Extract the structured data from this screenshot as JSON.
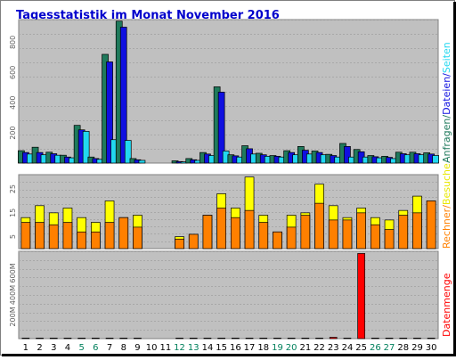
{
  "chart_data": {
    "type": "bar",
    "title": "Tagesstatistik im Monat November 2016",
    "days": [
      "1",
      "2",
      "3",
      "4",
      "5",
      "6",
      "7",
      "8",
      "9",
      "10",
      "11",
      "12",
      "13",
      "14",
      "15",
      "16",
      "17",
      "18",
      "19",
      "20",
      "21",
      "22",
      "23",
      "24",
      "25",
      "26",
      "27",
      "28",
      "29",
      "30"
    ],
    "weekend_days": [
      "5",
      "6",
      "12",
      "13",
      "19",
      "20",
      "26",
      "27"
    ],
    "panels": [
      {
        "name": "requests-files-pages",
        "ylim": [
          0,
          950
        ],
        "ticks": [
          "200",
          "400",
          "600",
          "800"
        ],
        "tick_values": [
          200,
          400,
          600,
          800
        ],
        "series": [
          {
            "name": "Anfragen",
            "color": "#1f7a5c",
            "values": [
              82,
              105,
              72,
              52,
              250,
              40,
              720,
              940,
              30,
              0,
              0,
              15,
              30,
              70,
              505,
              55,
              115,
              65,
              50,
              82,
              110,
              80,
              58,
              130,
              90,
              50,
              45,
              72,
              72,
              68
            ]
          },
          {
            "name": "Dateien",
            "color": "#1010e0",
            "values": [
              70,
              70,
              62,
              40,
              220,
              30,
              670,
              900,
              22,
              0,
              0,
              10,
              22,
              60,
              470,
              48,
              95,
              55,
              45,
              70,
              85,
              70,
              50,
              110,
              75,
              42,
              38,
              62,
              62,
              60
            ]
          },
          {
            "name": "Seiten",
            "color": "#22d8f0",
            "values": [
              60,
              55,
              52,
              35,
              210,
              25,
              155,
              150,
              18,
              0,
              0,
              8,
              18,
              50,
              80,
              40,
              60,
              45,
              40,
              55,
              60,
              55,
              40,
              40,
              40,
              35,
              30,
              55,
              55,
              50
            ]
          }
        ]
      },
      {
        "name": "hosts-visits",
        "ylim": [
          0,
          31
        ],
        "ticks": [
          "5",
          "15",
          "25"
        ],
        "tick_values": [
          5,
          15,
          25
        ],
        "series": [
          {
            "name": "Besuche",
            "color": "#ffff00",
            "values": [
              13,
              18,
              15,
              17,
              13,
              11,
              20,
              13,
              14,
              0,
              0,
              5,
              6,
              14,
              23,
              17,
              30,
              14,
              7,
              14,
              15,
              27,
              18,
              13,
              17,
              13,
              12,
              16,
              22,
              20
            ]
          },
          {
            "name": "Rechner",
            "color": "#ff8000",
            "values": [
              11,
              11,
              10,
              11,
              7,
              7,
              11,
              13,
              9,
              0,
              0,
              4,
              6,
              14,
              17,
              13,
              16,
              11,
              7,
              9,
              14,
              19,
              12,
              12,
              15,
              10,
              8,
              14,
              15,
              20
            ]
          }
        ]
      },
      {
        "name": "volume",
        "ylim": [
          0,
          800
        ],
        "ticks": [
          "200M",
          "400M",
          "600M"
        ],
        "tick_values": [
          200,
          400,
          600
        ],
        "series": [
          {
            "name": "Datenmenge",
            "color": "#ff0000",
            "values": [
              5,
              5,
              5,
              5,
              5,
              5,
              5,
              5,
              5,
              0,
              0,
              5,
              5,
              5,
              5,
              5,
              5,
              5,
              5,
              5,
              5,
              5,
              12,
              5,
              780,
              5,
              5,
              5,
              5,
              5
            ]
          }
        ]
      }
    ],
    "side_labels": {
      "top": [
        {
          "text": "Anfragen",
          "color": "#1f7a5c"
        },
        {
          "text": "/",
          "color": "#1f7a5c"
        },
        {
          "text": "Dateien",
          "color": "#1010e0"
        },
        {
          "text": "/",
          "color": "#1010e0"
        },
        {
          "text": "Seiten",
          "color": "#22d8f0"
        }
      ],
      "middle": [
        {
          "text": "Rechner",
          "color": "#ff8000"
        },
        {
          "text": "/",
          "color": "#ff8000"
        },
        {
          "text": "Besuche",
          "color": "#e8e800"
        }
      ],
      "bottom": [
        {
          "text": "Datenmenge",
          "color": "#ff0000"
        }
      ]
    }
  },
  "colors": {
    "title": "#0000cc",
    "panel_bg": "#c0c0c0",
    "frame_bg": "#ffffff",
    "weekday_label": "#000000",
    "weekend_label": "#00805c"
  }
}
